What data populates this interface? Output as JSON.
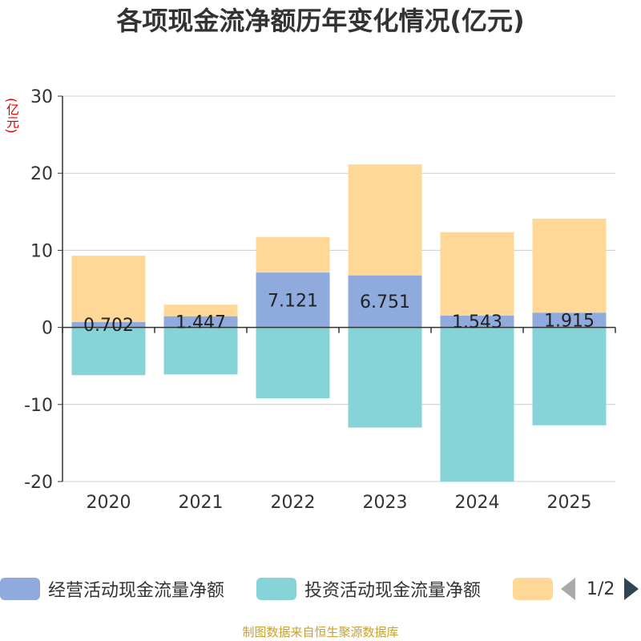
{
  "chart_data": {
    "type": "bar",
    "stacked": true,
    "title": "各项现金流净额历年变化情况(亿元)",
    "ylabel": "(亿元)",
    "ylim": [
      -20,
      30
    ],
    "yticks": [
      30,
      20,
      10,
      0,
      -10,
      -20
    ],
    "categories": [
      "2020",
      "2021",
      "2022",
      "2023",
      "2024",
      "2025"
    ],
    "series": [
      {
        "name": "经营活动现金流量净额",
        "color": "#8faadc",
        "values": [
          0.702,
          1.447,
          7.121,
          6.751,
          1.543,
          1.915
        ],
        "labels": [
          "0.702",
          "1.447",
          "7.121",
          "6.751",
          "1.543",
          "1.915"
        ]
      },
      {
        "name": "投资活动现金流量净额",
        "color": "#87d4d8",
        "values": [
          -6.2,
          -6.1,
          -9.2,
          -13.0,
          -20.0,
          -12.7
        ]
      },
      {
        "name": "",
        "color": "#ffd897",
        "values": [
          8.6,
          1.5,
          4.6,
          14.4,
          10.8,
          12.2
        ]
      }
    ]
  },
  "legend": {
    "items": [
      {
        "label": "经营活动现金流量净额",
        "color": "#8faadc"
      },
      {
        "label": "投资活动现金流量净额",
        "color": "#87d4d8"
      },
      {
        "label": "",
        "color": "#ffd897"
      }
    ],
    "page": "1/2"
  },
  "source": "制图数据来自恒生聚源数据库"
}
